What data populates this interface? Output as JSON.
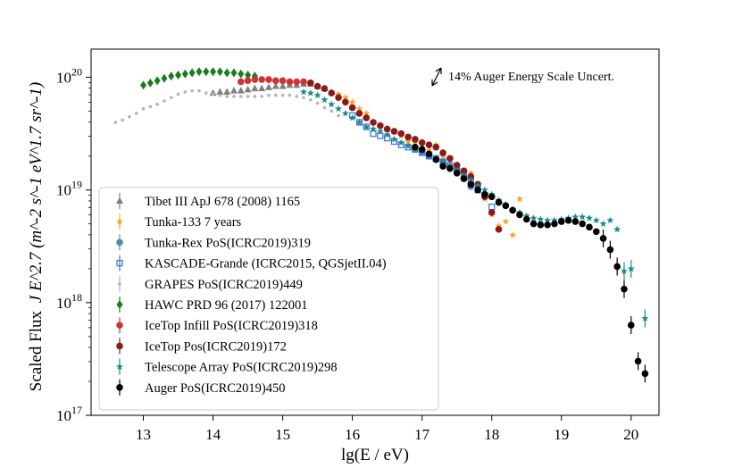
{
  "chart_data": {
    "type": "scatter",
    "title": "",
    "xlabel": "lg(E / eV)",
    "ylabel_prefix": "Scaled Flux",
    "ylabel_math": "J E^2.7 (m^-2 s^-1 eV^1.7 sr^-1)",
    "xlim": [
      12.25,
      20.4
    ],
    "ylim_log10": [
      17,
      20.25
    ],
    "xticks": [
      "13",
      "14",
      "15",
      "16",
      "17",
      "18",
      "19",
      "20"
    ],
    "yticks": [
      {
        "base": "10",
        "exp": "17"
      },
      {
        "base": "10",
        "exp": "18"
      },
      {
        "base": "10",
        "exp": "19"
      },
      {
        "base": "10",
        "exp": "20"
      }
    ],
    "annotation": "14% Auger Energy Scale Uncert.",
    "legend_position": "lower-left",
    "series": [
      {
        "name": "Tibet III ApJ 678 (2008) 1165",
        "color": "#808080",
        "marker": "triangle-up",
        "points": [
          [
            14.0,
            19.86
          ],
          [
            14.1,
            19.87
          ],
          [
            14.2,
            19.87
          ],
          [
            14.3,
            19.88
          ],
          [
            14.4,
            19.88
          ],
          [
            14.5,
            19.89
          ],
          [
            14.6,
            19.9
          ],
          [
            14.7,
            19.9
          ],
          [
            14.8,
            19.91
          ],
          [
            14.9,
            19.92
          ],
          [
            15.0,
            19.92
          ],
          [
            15.1,
            19.93
          ],
          [
            15.2,
            19.93
          ],
          [
            15.3,
            19.94
          ],
          [
            15.4,
            19.94
          ],
          [
            15.5,
            19.92
          ],
          [
            15.6,
            19.9
          ]
        ]
      },
      {
        "name": "Tunka-133 7 years",
        "color": "#f5a623",
        "marker": "star",
        "points": [
          [
            15.7,
            19.87
          ],
          [
            15.8,
            19.85
          ],
          [
            15.9,
            19.82
          ],
          [
            16.0,
            19.78
          ],
          [
            16.1,
            19.72
          ],
          [
            16.2,
            19.68
          ],
          [
            16.3,
            19.6
          ],
          [
            16.4,
            19.58
          ],
          [
            16.5,
            19.55
          ],
          [
            16.6,
            19.52
          ],
          [
            16.7,
            19.48
          ],
          [
            16.8,
            19.43
          ],
          [
            16.9,
            19.42
          ],
          [
            17.0,
            19.4
          ],
          [
            17.1,
            19.35
          ],
          [
            17.2,
            19.4
          ],
          [
            17.3,
            19.3
          ],
          [
            17.4,
            19.26
          ],
          [
            17.5,
            19.2
          ],
          [
            17.6,
            19.16
          ],
          [
            17.7,
            19.15
          ],
          [
            17.8,
            19.05
          ],
          [
            17.9,
            18.92
          ],
          [
            18.0,
            18.78
          ],
          [
            18.1,
            18.68
          ],
          [
            18.2,
            18.72
          ],
          [
            18.3,
            18.6
          ],
          [
            18.4,
            18.92
          ]
        ]
      },
      {
        "name": "Tunka-Rex PoS(ICRC2019)319",
        "color": "#4c8cb3",
        "marker": "circle",
        "points": [
          [
            16.9,
            19.36
          ],
          [
            17.0,
            19.34
          ],
          [
            17.1,
            19.3
          ],
          [
            17.2,
            19.27
          ],
          [
            17.3,
            19.25
          ],
          [
            17.4,
            19.2
          ],
          [
            17.5,
            19.18
          ],
          [
            17.6,
            19.1
          ],
          [
            17.7,
            19.03
          ]
        ]
      },
      {
        "name": "KASCADE-Grande (ICRC2015, QGSjetII.04)",
        "color": "#3a6fd8",
        "marker": "square-open",
        "points": [
          [
            16.0,
            19.66
          ],
          [
            16.1,
            19.6
          ],
          [
            16.2,
            19.56
          ],
          [
            16.3,
            19.5
          ],
          [
            16.4,
            19.48
          ],
          [
            16.5,
            19.46
          ],
          [
            16.6,
            19.43
          ],
          [
            16.7,
            19.4
          ],
          [
            16.8,
            19.38
          ],
          [
            16.9,
            19.36
          ],
          [
            17.0,
            19.33
          ],
          [
            17.1,
            19.3
          ],
          [
            17.2,
            19.28
          ],
          [
            17.3,
            19.25
          ],
          [
            17.4,
            19.22
          ],
          [
            17.5,
            19.17
          ],
          [
            17.6,
            19.13
          ],
          [
            17.7,
            19.08
          ],
          [
            17.8,
            19.0
          ],
          [
            17.9,
            18.95
          ],
          [
            18.0,
            18.85
          ]
        ]
      },
      {
        "name": "GRAPES PoS(ICRC2019)449",
        "color": "#b4b4b4",
        "marker": "dot",
        "points": [
          [
            12.6,
            19.6
          ],
          [
            12.7,
            19.62
          ],
          [
            12.8,
            19.65
          ],
          [
            12.9,
            19.68
          ],
          [
            13.0,
            19.72
          ],
          [
            13.1,
            19.74
          ],
          [
            13.2,
            19.76
          ],
          [
            13.3,
            19.79
          ],
          [
            13.4,
            19.82
          ],
          [
            13.5,
            19.85
          ],
          [
            13.6,
            19.87
          ],
          [
            13.7,
            19.88
          ],
          [
            13.8,
            19.88
          ],
          [
            13.9,
            19.86
          ],
          [
            14.0,
            19.85
          ],
          [
            14.1,
            19.84
          ],
          [
            14.2,
            19.83
          ],
          [
            14.3,
            19.83
          ],
          [
            14.4,
            19.83
          ],
          [
            14.5,
            19.83
          ],
          [
            14.6,
            19.83
          ],
          [
            14.7,
            19.83
          ],
          [
            14.8,
            19.84
          ],
          [
            14.9,
            19.84
          ],
          [
            15.0,
            19.84
          ],
          [
            15.1,
            19.84
          ],
          [
            15.2,
            19.83
          ],
          [
            15.3,
            19.82
          ],
          [
            15.4,
            19.8
          ],
          [
            15.5,
            19.77
          ],
          [
            15.6,
            19.73
          ],
          [
            15.7,
            19.7
          ],
          [
            15.8,
            19.66
          ]
        ]
      },
      {
        "name": "HAWC PRD 96 (2017) 122001",
        "color": "#1e7a1e",
        "marker": "diamond",
        "points": [
          [
            13.0,
            19.93
          ],
          [
            13.1,
            19.95
          ],
          [
            13.2,
            19.97
          ],
          [
            13.3,
            19.99
          ],
          [
            13.4,
            20.01
          ],
          [
            13.5,
            20.02
          ],
          [
            13.6,
            20.03
          ],
          [
            13.7,
            20.04
          ],
          [
            13.8,
            20.05
          ],
          [
            13.9,
            20.05
          ],
          [
            14.0,
            20.05
          ],
          [
            14.1,
            20.05
          ],
          [
            14.2,
            20.04
          ],
          [
            14.3,
            20.04
          ],
          [
            14.4,
            20.03
          ],
          [
            14.5,
            20.02
          ],
          [
            14.6,
            20.01
          ]
        ]
      },
      {
        "name": "IceTop Infill PoS(ICRC2019)318",
        "color": "#cc3333",
        "marker": "circle",
        "points": [
          [
            14.4,
            19.96
          ],
          [
            14.5,
            19.97
          ],
          [
            14.6,
            19.98
          ],
          [
            14.7,
            19.98
          ],
          [
            14.8,
            19.98
          ],
          [
            14.9,
            19.97
          ],
          [
            15.0,
            19.97
          ],
          [
            15.1,
            19.96
          ],
          [
            15.2,
            19.96
          ],
          [
            15.3,
            19.96
          ]
        ]
      },
      {
        "name": "IceTop Pos(ICRC2019)172",
        "color": "#8b1a1a",
        "marker": "circle",
        "points": [
          [
            15.4,
            19.95
          ],
          [
            15.5,
            19.92
          ],
          [
            15.6,
            19.9
          ],
          [
            15.7,
            19.86
          ],
          [
            15.8,
            19.82
          ],
          [
            15.9,
            19.78
          ],
          [
            16.0,
            19.73
          ],
          [
            16.1,
            19.68
          ],
          [
            16.2,
            19.64
          ],
          [
            16.3,
            19.6
          ],
          [
            16.4,
            19.57
          ],
          [
            16.5,
            19.54
          ],
          [
            16.6,
            19.52
          ],
          [
            16.7,
            19.5
          ],
          [
            16.8,
            19.47
          ],
          [
            16.9,
            19.45
          ],
          [
            17.0,
            19.42
          ],
          [
            17.1,
            19.4
          ],
          [
            17.2,
            19.38
          ],
          [
            17.3,
            19.33
          ],
          [
            17.4,
            19.28
          ],
          [
            17.5,
            19.22
          ],
          [
            17.6,
            19.17
          ],
          [
            17.7,
            19.12
          ],
          [
            17.8,
            19.05
          ],
          [
            17.9,
            18.94
          ],
          [
            18.0,
            18.8
          ],
          [
            18.1,
            18.65
          ]
        ]
      },
      {
        "name": "Telescope Array PoS(ICRC2019)298",
        "color": "#1a8a8a",
        "marker": "star",
        "points": [
          [
            15.3,
            19.87
          ],
          [
            15.4,
            19.86
          ],
          [
            15.5,
            19.84
          ],
          [
            15.6,
            19.8
          ],
          [
            15.7,
            19.76
          ],
          [
            15.8,
            19.72
          ],
          [
            15.9,
            19.68
          ],
          [
            16.0,
            19.64
          ],
          [
            16.1,
            19.6
          ],
          [
            16.2,
            19.56
          ],
          [
            16.3,
            19.54
          ],
          [
            16.4,
            19.52
          ],
          [
            16.5,
            19.49
          ],
          [
            16.6,
            19.45
          ],
          [
            16.7,
            19.42
          ],
          [
            16.8,
            19.39
          ],
          [
            16.9,
            19.37
          ],
          [
            17.0,
            19.34
          ],
          [
            17.1,
            19.31
          ],
          [
            17.2,
            19.28
          ],
          [
            17.3,
            19.25
          ],
          [
            17.4,
            19.22
          ],
          [
            17.5,
            19.17
          ],
          [
            17.6,
            19.13
          ],
          [
            17.7,
            19.09
          ],
          [
            17.8,
            19.04
          ],
          [
            17.9,
            19.0
          ],
          [
            18.0,
            18.96
          ],
          [
            18.1,
            18.91
          ],
          [
            18.2,
            18.87
          ],
          [
            18.3,
            18.83
          ],
          [
            18.4,
            18.8
          ],
          [
            18.5,
            18.77
          ],
          [
            18.6,
            18.75
          ],
          [
            18.7,
            18.74
          ],
          [
            18.8,
            18.73
          ],
          [
            18.9,
            18.73
          ],
          [
            19.0,
            18.74
          ],
          [
            19.1,
            18.75
          ],
          [
            19.2,
            18.76
          ],
          [
            19.3,
            18.76
          ],
          [
            19.4,
            18.75
          ],
          [
            19.5,
            18.73
          ],
          [
            19.6,
            18.7
          ],
          [
            19.7,
            18.73
          ],
          [
            19.8,
            18.65
          ],
          [
            19.9,
            18.28
          ],
          [
            20.0,
            18.3
          ],
          [
            20.2,
            17.86
          ]
        ]
      },
      {
        "name": "Auger PoS(ICRC2019)450",
        "color": "#000000",
        "marker": "circle",
        "points": [
          [
            16.9,
            19.38
          ],
          [
            17.0,
            19.36
          ],
          [
            17.1,
            19.32
          ],
          [
            17.2,
            19.27
          ],
          [
            17.3,
            19.21
          ],
          [
            17.4,
            19.19
          ],
          [
            17.5,
            19.15
          ],
          [
            17.6,
            19.1
          ],
          [
            17.7,
            19.05
          ],
          [
            17.8,
            19.0
          ],
          [
            17.9,
            18.96
          ],
          [
            18.0,
            18.94
          ],
          [
            18.1,
            18.89
          ],
          [
            18.2,
            18.86
          ],
          [
            18.3,
            18.82
          ],
          [
            18.4,
            18.78
          ],
          [
            18.5,
            18.74
          ],
          [
            18.6,
            18.7
          ],
          [
            18.7,
            18.69
          ],
          [
            18.8,
            18.69
          ],
          [
            18.9,
            18.7
          ],
          [
            19.0,
            18.72
          ],
          [
            19.1,
            18.73
          ],
          [
            19.2,
            18.72
          ],
          [
            19.3,
            18.7
          ],
          [
            19.4,
            18.67
          ],
          [
            19.5,
            18.63
          ],
          [
            19.6,
            18.57
          ],
          [
            19.7,
            18.47
          ],
          [
            19.8,
            18.32
          ],
          [
            19.9,
            18.12
          ],
          [
            20.0,
            17.8
          ],
          [
            20.1,
            17.48
          ],
          [
            20.2,
            17.37
          ]
        ]
      }
    ]
  }
}
